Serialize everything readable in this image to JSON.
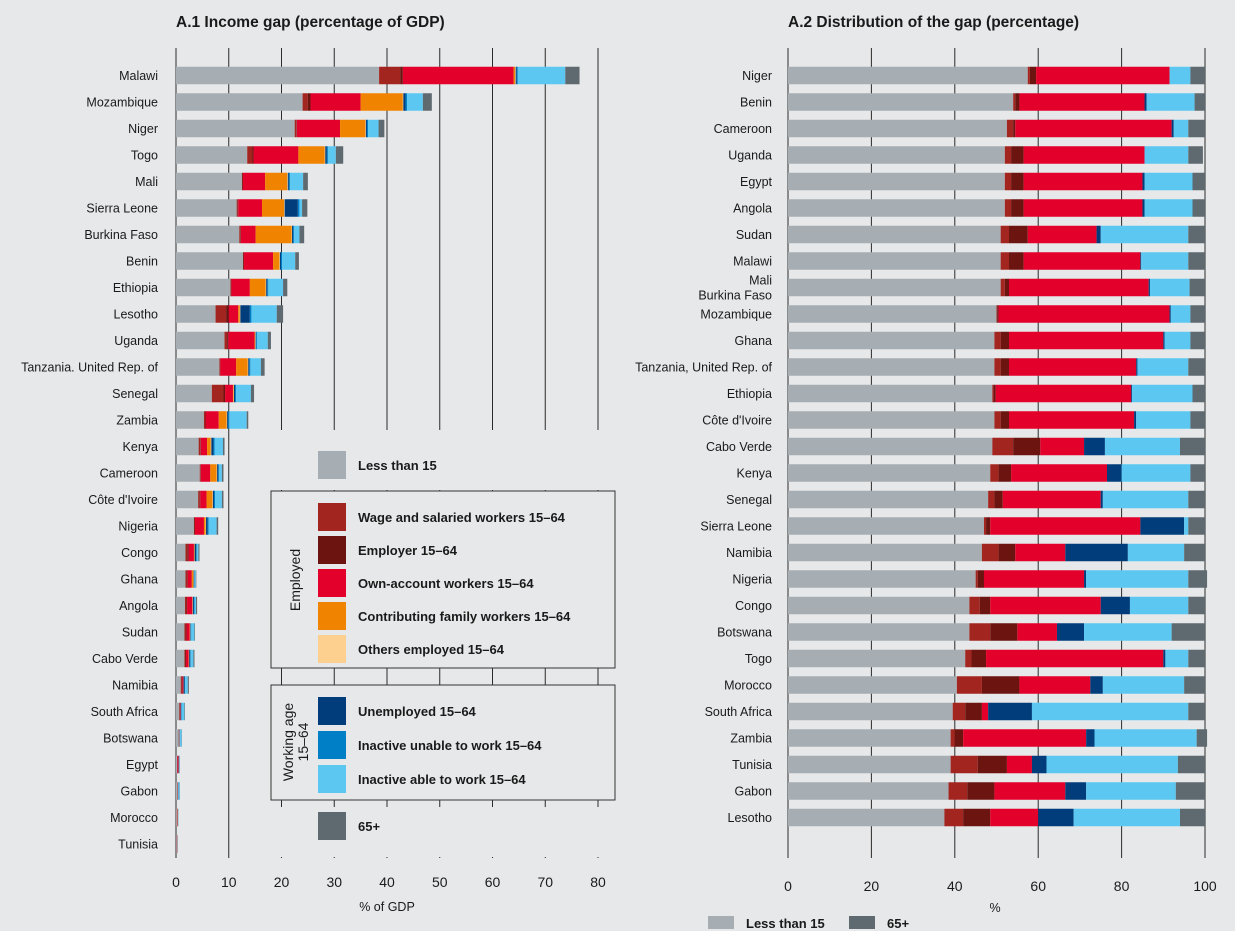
{
  "colors": {
    "background": "#e7e8e9",
    "gridline": "#2b2b2b",
    "lt15": "#a7aeb3",
    "wage": "#a3251f",
    "employer": "#6b1410",
    "own": "#e3002b",
    "family": "#f08400",
    "others": "#fdd08f",
    "unemployed": "#003d7a",
    "unable": "#007ec6",
    "able": "#5cc8f2",
    "g65": "#5f6a70"
  },
  "series_keys": [
    "lt15",
    "wage",
    "employer",
    "own",
    "family",
    "others",
    "unemployed",
    "unable",
    "able",
    "g65"
  ],
  "chart_data": [
    {
      "type": "bar",
      "orientation": "horizontal",
      "stacked": true,
      "title": "A.1 Income gap (percentage of GDP)",
      "xlabel": "% of GDP",
      "xlim": [
        0,
        80
      ],
      "xticks": [
        "0",
        "10",
        "20",
        "30",
        "40",
        "50",
        "60",
        "70",
        "80"
      ],
      "grid": true,
      "legend_position": "right",
      "categories": [
        "Malawi",
        "Mozambique",
        "Niger",
        "Togo",
        "Mali",
        "Sierra Leone",
        "Burkina Faso",
        "Benin",
        "Ethiopia",
        "Lesotho",
        "Uganda",
        "Tanzania. United Rep. of",
        "Senegal",
        "Zambia",
        "Kenya",
        "Cameroon",
        "Côte d'Ivoire",
        "Nigeria",
        "Congo",
        "Ghana",
        "Angola",
        "Sudan",
        "Cabo Verde",
        "Namibia",
        "South Africa",
        "Botswana",
        "Egypt",
        "Gabon",
        "Morocco",
        "Tunisia"
      ],
      "series": [
        {
          "key": "lt15",
          "name": "Less than 15",
          "values": [
            38.5,
            24.0,
            22.5,
            13.5,
            12.5,
            11.5,
            12.0,
            12.7,
            10.3,
            7.5,
            9.2,
            8.2,
            6.8,
            5.3,
            4.3,
            4.5,
            4.2,
            3.4,
            1.8,
            1.8,
            1.7,
            1.6,
            1.6,
            0.9,
            0.6,
            0.5,
            0.2,
            0.2,
            0.15,
            0.1
          ]
        },
        {
          "key": "wage",
          "name": "Wage and salaried workers 15–64",
          "values": [
            4.0,
            1.0,
            0.3,
            1.0,
            0.1,
            0.2,
            0.2,
            0.1,
            0.1,
            2.0,
            0.5,
            0.1,
            2.2,
            0.2,
            0.3,
            0.1,
            0.3,
            0.1,
            0.4,
            0.3,
            0.3,
            0.3,
            0.2,
            0.2,
            0.1,
            0.05,
            0.05,
            0.05,
            0.1,
            0.05
          ]
        },
        {
          "key": "employer",
          "name": "Employer 15–64",
          "values": [
            0.5,
            0.5,
            0.1,
            0.2,
            0.1,
            0.1,
            0.1,
            0.1,
            0.1,
            0.5,
            0.2,
            0.1,
            0.3,
            0.1,
            0.1,
            0.1,
            0.1,
            0.1,
            0.2,
            0.1,
            0.1,
            0.1,
            0.1,
            0.1,
            0.05,
            0.02,
            0.02,
            0.02,
            0.02,
            0.02
          ]
        },
        {
          "key": "own",
          "name": "Own-account workers 15–64",
          "values": [
            21.0,
            9.5,
            8.2,
            8.5,
            4.2,
            4.5,
            2.8,
            5.5,
            3.5,
            1.8,
            5.0,
            3.0,
            1.5,
            2.5,
            1.2,
            1.8,
            1.2,
            1.7,
            1.0,
            0.8,
            1.0,
            0.6,
            0.5,
            0.2,
            0.1,
            0.05,
            0.2,
            0.05,
            0.05,
            0.05
          ]
        },
        {
          "key": "family",
          "name": "Contributing family workers 15–64",
          "values": [
            0.3,
            8.0,
            4.8,
            5.0,
            4.2,
            4.2,
            6.8,
            1.2,
            3.0,
            0.3,
            0.1,
            2.2,
            0.1,
            1.5,
            0.7,
            1.2,
            1.1,
            0.3,
            0.1,
            0.3,
            0.05,
            0.05,
            0.05,
            0.02,
            0.02,
            0.02,
            0.02,
            0.02,
            0.02,
            0.02
          ]
        },
        {
          "key": "others",
          "name": "Others employed 15–64",
          "values": [
            0.1,
            0.1,
            0.1,
            0.1,
            0.1,
            0.1,
            0.1,
            0.1,
            0.1,
            0.1,
            0.1,
            0.1,
            0.1,
            0.1,
            0.1,
            0.1,
            0.1,
            0.1,
            0.05,
            0.05,
            0.05,
            0.05,
            0.05,
            0.02,
            0.02,
            0.02,
            0.02,
            0.02,
            0.02,
            0.02
          ]
        },
        {
          "key": "unemployed",
          "name": "Unemployed 15–64",
          "values": [
            0.2,
            0.4,
            0.2,
            0.3,
            0.2,
            2.5,
            0.2,
            0.2,
            0.2,
            1.8,
            0.1,
            0.2,
            0.2,
            0.2,
            0.4,
            0.2,
            0.2,
            0.3,
            0.3,
            0.1,
            0.2,
            0.1,
            0.2,
            0.2,
            0.1,
            0.05,
            0.05,
            0.05,
            0.02,
            0.02
          ]
        },
        {
          "key": "unable",
          "name": "Inactive unable to work 15–64",
          "values": [
            0.2,
            0.3,
            0.2,
            0.2,
            0.2,
            0.3,
            0.2,
            0.2,
            0.2,
            0.3,
            0.2,
            0.2,
            0.2,
            0.2,
            0.2,
            0.2,
            0.2,
            0.2,
            0.1,
            0.1,
            0.1,
            0.1,
            0.1,
            0.1,
            0.1,
            0.05,
            0.05,
            0.05,
            0.02,
            0.02
          ]
        },
        {
          "key": "able",
          "name": "Inactive able to work 15–64",
          "values": [
            9.0,
            3.0,
            2.0,
            1.5,
            2.5,
            0.5,
            1.0,
            2.5,
            2.8,
            4.8,
            2.0,
            2.0,
            2.8,
            3.3,
            1.6,
            0.5,
            1.3,
            1.5,
            0.3,
            0.2,
            0.3,
            0.6,
            0.5,
            0.5,
            0.5,
            0.3,
            0.05,
            0.2,
            0.05,
            0.02
          ]
        },
        {
          "key": "g65",
          "name": "65+",
          "values": [
            2.7,
            1.7,
            1.1,
            1.4,
            0.9,
            1.0,
            0.9,
            0.7,
            0.8,
            1.2,
            0.6,
            0.7,
            0.6,
            0.3,
            0.3,
            0.3,
            0.3,
            0.3,
            0.2,
            0.1,
            0.2,
            0.1,
            0.2,
            0.2,
            0.1,
            0.05,
            0.05,
            0.05,
            0.02,
            0.02
          ]
        }
      ]
    },
    {
      "type": "bar",
      "orientation": "horizontal",
      "stacked": true,
      "title": "A.2 Distribution of the gap (percentage)",
      "xlabel": "%",
      "xlim": [
        0,
        100
      ],
      "xticks": [
        "0",
        "20",
        "40",
        "60",
        "80",
        "100"
      ],
      "grid": true,
      "legend_position": "bottom-left",
      "categories": [
        "Niger",
        "Benin",
        "Cameroon",
        "Uganda",
        "Egypt",
        "Angola",
        "Sudan",
        "Malawi",
        "Mali\nBurkina Faso",
        "Mozambique",
        "Ghana",
        "Tanzania, United Rep. of",
        "Ethiopia",
        "Côte d'Ivoire",
        "Cabo Verde",
        "Kenya",
        "Senegal",
        "Sierra Leone",
        "Namibia",
        "Nigeria",
        "Congo",
        "Botswana",
        "Togo",
        "Morocco",
        "South Africa",
        "Zambia",
        "Tunisia",
        "Gabon",
        "Lesotho"
      ],
      "series": [
        {
          "key": "lt15",
          "name": "Less than 15",
          "values": [
            57.5,
            54,
            52.5,
            52,
            52,
            52,
            51,
            51,
            51,
            50,
            49.5,
            49.5,
            49,
            49.5,
            49,
            48.5,
            48,
            47,
            46.5,
            45,
            43.5,
            43.5,
            42.5,
            40.5,
            39.5,
            39,
            39,
            38.5,
            37.5
          ]
        },
        {
          "key": "wage",
          "name": "Wage and salaried workers 15–64",
          "values": [
            0.5,
            0.5,
            1.5,
            1.5,
            1.5,
            1.5,
            2.0,
            2.0,
            1.0,
            0.2,
            1.5,
            1.5,
            0.3,
            1.5,
            5.0,
            2.0,
            1.5,
            0.5,
            4.0,
            0.5,
            2.5,
            5.0,
            1.5,
            6.0,
            3.0,
            1.0,
            6.5,
            4.5,
            4.5
          ]
        },
        {
          "key": "employer",
          "name": "Employer 15–64",
          "values": [
            1.5,
            1.0,
            0.5,
            3.0,
            3.0,
            3.0,
            4.5,
            3.5,
            1.0,
            0.3,
            2.0,
            2.0,
            0.5,
            2.0,
            6.5,
            3.0,
            2.0,
            1.0,
            4.0,
            1.5,
            2.5,
            6.5,
            3.5,
            9.0,
            4.0,
            2.0,
            7.0,
            6.5,
            6.5
          ]
        },
        {
          "key": "own",
          "name": "Own-account workers 15–64",
          "values": [
            32,
            30,
            37.5,
            29,
            28.5,
            28.5,
            16.5,
            28,
            33.5,
            41,
            37,
            30.5,
            32.5,
            30,
            10.5,
            23,
            23.5,
            36,
            12,
            24,
            26.5,
            9.5,
            42.5,
            17,
            1.5,
            29.5,
            6,
            17,
            11.5
          ]
        },
        {
          "key": "family",
          "name": "Contributing family workers 15–64",
          "values": [
            0,
            0,
            0,
            0,
            0,
            0,
            0,
            0,
            0,
            0,
            0,
            0,
            0,
            0,
            0,
            0,
            0,
            0,
            0,
            0,
            0,
            0,
            0,
            0,
            0,
            0,
            0,
            0,
            0
          ]
        },
        {
          "key": "others",
          "name": "Others employed 15–64",
          "values": [
            0,
            0,
            0,
            0,
            0,
            0,
            0,
            0,
            0,
            0,
            0,
            0,
            0,
            0,
            0,
            0,
            0,
            0,
            0,
            0,
            0,
            0,
            0,
            0,
            0,
            0,
            0,
            0,
            0
          ]
        },
        {
          "key": "unemployed",
          "name": "Unemployed 15–64",
          "values": [
            0,
            0.5,
            0.5,
            0,
            0.5,
            0.5,
            1.0,
            0.2,
            0.3,
            0.3,
            0.3,
            0.3,
            0.2,
            0.5,
            5.0,
            3.5,
            0.5,
            10.5,
            15,
            0.5,
            7.0,
            6.5,
            0.5,
            3.0,
            10.5,
            2.0,
            3.5,
            5.0,
            8.5
          ]
        },
        {
          "key": "unable",
          "name": "Inactive unable to work 15–64",
          "values": [
            0,
            0,
            0,
            0,
            0,
            0,
            0,
            0,
            0,
            0,
            0,
            0,
            0,
            0,
            0,
            0,
            0,
            0,
            0,
            0,
            0,
            0,
            0,
            0,
            0,
            0,
            0,
            0,
            0
          ]
        },
        {
          "key": "able",
          "name": "Inactive able to work 15–64",
          "values": [
            5.0,
            11.5,
            3.5,
            10.5,
            11.5,
            11.5,
            21.0,
            11.3,
            9.5,
            4.7,
            6.2,
            12.2,
            14.5,
            13.0,
            18.0,
            16.5,
            20.5,
            1.0,
            13.5,
            24.5,
            14.0,
            21.0,
            5.5,
            19.5,
            37.5,
            24.5,
            31.5,
            21.5,
            25.5
          ]
        },
        {
          "key": "g65",
          "name": "65+",
          "values": [
            3.5,
            2.5,
            4.0,
            3.5,
            3.0,
            3.0,
            4.0,
            4.0,
            3.7,
            3.5,
            3.5,
            4.0,
            3.0,
            3.5,
            6.0,
            3.5,
            4.0,
            4.0,
            5.0,
            4.5,
            4.0,
            8.0,
            4.0,
            5.0,
            4.0,
            2.5,
            6.5,
            7.0,
            6.0
          ]
        }
      ],
      "legend_items": [
        {
          "key": "lt15",
          "name": "Less than 15"
        },
        {
          "key": "g65",
          "name": "65+"
        }
      ]
    }
  ],
  "legend_a1": {
    "top": [
      {
        "key": "lt15",
        "name": "Less than 15"
      }
    ],
    "employed_group_label": "Employed",
    "employed": [
      {
        "key": "wage",
        "name": "Wage and salaried workers 15–64"
      },
      {
        "key": "employer",
        "name": "Employer 15–64"
      },
      {
        "key": "own",
        "name": "Own-account workers 15–64"
      },
      {
        "key": "family",
        "name": "Contributing family workers 15–64"
      },
      {
        "key": "others",
        "name": "Others employed 15–64"
      }
    ],
    "working_group_label_1": "Working age",
    "working_group_label_2": "15–64",
    "working": [
      {
        "key": "unemployed",
        "name": "Unemployed 15–64"
      },
      {
        "key": "unable",
        "name": "Inactive unable to work 15–64"
      },
      {
        "key": "able",
        "name": "Inactive able to work 15–64"
      }
    ],
    "bottom": [
      {
        "key": "g65",
        "name": "65+"
      }
    ]
  }
}
